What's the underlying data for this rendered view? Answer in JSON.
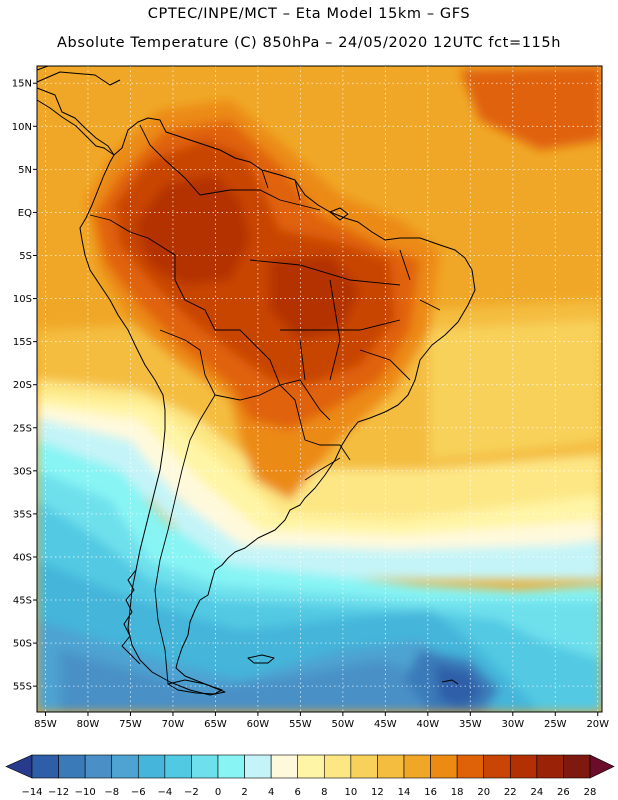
{
  "header": {
    "line1": "CPTEC/INPE/MCT –  Eta Model 15km – GFS",
    "line2": "Absolute Temperature (C) 850hPa – 24/05/2020 12UTC fct=115h"
  },
  "map": {
    "lat_labels": [
      "15N",
      "10N",
      "5N",
      "EQ",
      "5S",
      "10S",
      "15S",
      "20S",
      "25S",
      "30S",
      "35S",
      "40S",
      "45S",
      "50S",
      "55S"
    ],
    "lon_labels": [
      "85W",
      "80W",
      "75W",
      "70W",
      "65W",
      "60W",
      "55W",
      "50W",
      "45W",
      "40W",
      "35W",
      "30W",
      "25W",
      "20W"
    ],
    "lon_range": [
      -86,
      -19.5
    ],
    "lat_range": [
      17,
      -58
    ]
  },
  "colorbar": {
    "labels": [
      "−14",
      "−12",
      "−10",
      "−8",
      "−6",
      "−4",
      "−2",
      "0",
      "2",
      "4",
      "6",
      "8",
      "10",
      "12",
      "14",
      "16",
      "18",
      "20",
      "22",
      "24",
      "26",
      "28"
    ],
    "colors": [
      "#283a8c",
      "#2f5ea8",
      "#3a7ab9",
      "#4a90c6",
      "#4da3d1",
      "#45b5da",
      "#52c9e3",
      "#6ee0ec",
      "#88f4f4",
      "#c4f4f8",
      "#fff9dc",
      "#fff5a6",
      "#fde785",
      "#f8d15a",
      "#f4bd40",
      "#f0a727",
      "#ec8a12",
      "#e06208",
      "#c84506",
      "#b33005",
      "#9a2206",
      "#7d190e",
      "#6b0c2a"
    ]
  }
}
